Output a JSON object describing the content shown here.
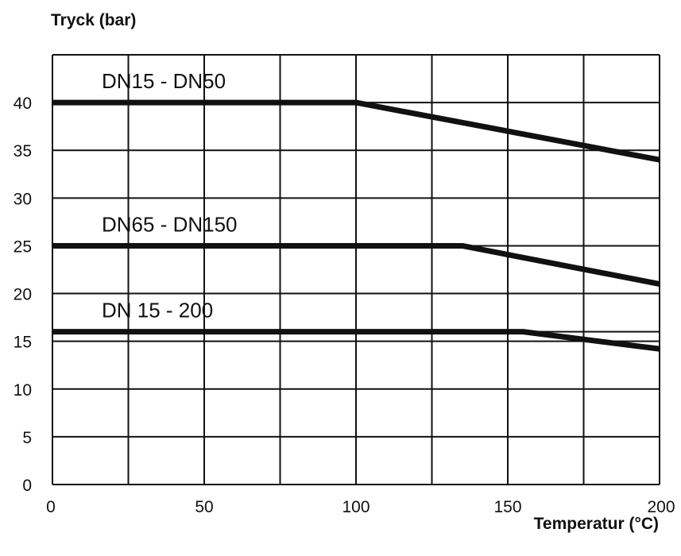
{
  "chart_data": {
    "type": "line",
    "title": "",
    "ylabel": "Tryck (bar)",
    "xlabel": "Temperatur (°C)",
    "xlim": [
      0,
      200
    ],
    "ylim": [
      0,
      45
    ],
    "x_ticks": [
      0,
      50,
      100,
      150,
      200
    ],
    "y_ticks": [
      0,
      5,
      10,
      15,
      20,
      25,
      30,
      35,
      40
    ],
    "x_grid": [
      0,
      25,
      50,
      75,
      100,
      125,
      150,
      175,
      200
    ],
    "y_grid": [
      0,
      5,
      10,
      15,
      16,
      20,
      25,
      30,
      35,
      40,
      45
    ],
    "grid": true,
    "series": [
      {
        "name": "DN15 - DN50",
        "x": [
          0,
          100,
          200
        ],
        "y": [
          40,
          40,
          34
        ]
      },
      {
        "name": "DN65 - DN150",
        "x": [
          0,
          135,
          200
        ],
        "y": [
          25,
          25,
          21
        ]
      },
      {
        "name": "DN 15 - 200",
        "x": [
          0,
          155,
          200
        ],
        "y": [
          16,
          16,
          14.2
        ]
      }
    ],
    "colors": {
      "line": "#111111",
      "grid": "#111111"
    }
  }
}
